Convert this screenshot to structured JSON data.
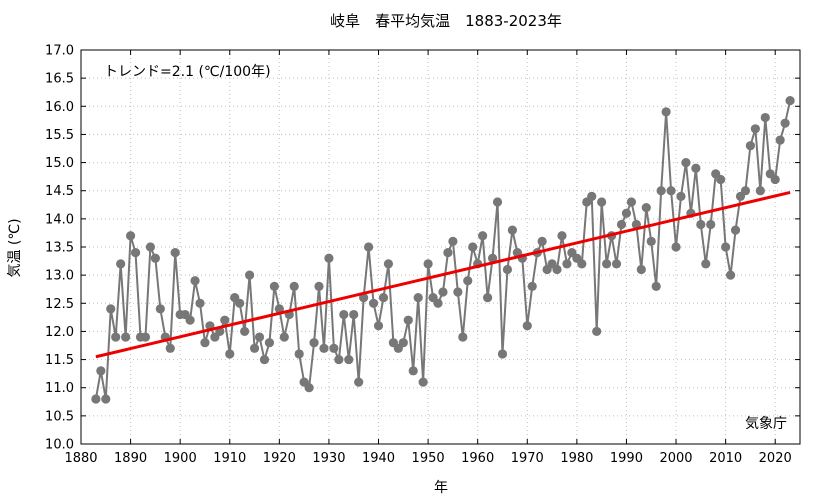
{
  "chart_data": {
    "type": "line",
    "title": "岐阜　春平均気温　1883-2023年",
    "xlabel": "年",
    "ylabel": "気温 (℃)",
    "xlim": [
      1880,
      2025
    ],
    "ylim": [
      10.0,
      17.0
    ],
    "x_ticks": [
      1880,
      1890,
      1900,
      1910,
      1920,
      1930,
      1940,
      1950,
      1960,
      1970,
      1980,
      1990,
      2000,
      2010,
      2020
    ],
    "y_ticks": [
      "10.0",
      "10.5",
      "11.0",
      "11.5",
      "12.0",
      "12.5",
      "13.0",
      "13.5",
      "14.0",
      "14.5",
      "15.0",
      "15.5",
      "16.0",
      "16.5",
      "17.0"
    ],
    "grid": true,
    "trend_label": "トレンド=2.1 (℃/100年)",
    "source": "気象庁",
    "colors": {
      "series": "#777777",
      "trend": "#ee0000"
    },
    "series": [
      {
        "x": [
          1883,
          1884,
          1885,
          1886,
          1887,
          1888,
          1889,
          1890,
          1891,
          1892,
          1893,
          1894,
          1895,
          1896,
          1897,
          1898,
          1899,
          1900,
          1901,
          1902,
          1903,
          1904,
          1905,
          1906,
          1907,
          1908,
          1909,
          1910,
          1911,
          1912,
          1913,
          1914,
          1915,
          1916,
          1917,
          1918,
          1919,
          1920,
          1921,
          1922,
          1923,
          1924,
          1925,
          1926,
          1927,
          1928,
          1929,
          1930,
          1931,
          1932,
          1933,
          1934,
          1935,
          1936,
          1937,
          1938,
          1939,
          1940,
          1941,
          1942,
          1943,
          1944,
          1945,
          1946,
          1947,
          1948,
          1949,
          1950,
          1951,
          1952,
          1953,
          1954,
          1955,
          1956,
          1957,
          1958,
          1959,
          1960,
          1961,
          1962,
          1963,
          1964,
          1965,
          1966,
          1967,
          1968,
          1969,
          1970,
          1971,
          1972,
          1973,
          1974,
          1975,
          1976,
          1977,
          1978,
          1979,
          1980,
          1981,
          1982,
          1983,
          1984,
          1985,
          1986,
          1987,
          1988,
          1989,
          1990,
          1991,
          1992,
          1993,
          1994,
          1995,
          1996,
          1997,
          1998,
          1999,
          2000,
          2001,
          2002,
          2003,
          2004,
          2005,
          2006,
          2007,
          2008,
          2009,
          2010,
          2011,
          2012,
          2013,
          2014,
          2015,
          2016,
          2017,
          2018,
          2019,
          2020,
          2021,
          2022,
          2023
        ],
        "values": [
          10.8,
          11.3,
          10.8,
          12.4,
          11.9,
          13.2,
          11.9,
          13.7,
          13.4,
          11.9,
          11.9,
          13.5,
          13.3,
          12.4,
          11.9,
          11.7,
          13.4,
          12.3,
          12.3,
          12.2,
          12.9,
          12.5,
          11.8,
          12.1,
          11.9,
          12.0,
          12.2,
          11.6,
          12.6,
          12.5,
          12.0,
          13.0,
          11.7,
          11.9,
          11.5,
          11.8,
          12.8,
          12.4,
          11.9,
          12.3,
          12.8,
          11.6,
          11.1,
          11.0,
          11.8,
          12.8,
          11.7,
          13.3,
          11.7,
          11.5,
          12.3,
          11.5,
          12.3,
          11.1,
          12.6,
          13.5,
          12.5,
          12.1,
          12.6,
          13.2,
          11.8,
          11.7,
          11.8,
          12.2,
          11.3,
          12.6,
          11.1,
          13.2,
          12.6,
          12.5,
          12.7,
          13.4,
          13.6,
          12.7,
          11.9,
          12.9,
          13.5,
          13.2,
          13.7,
          12.6,
          13.3,
          14.3,
          11.6,
          13.1,
          13.8,
          13.4,
          13.3,
          12.1,
          12.8,
          13.4,
          13.6,
          13.1,
          13.2,
          13.1,
          13.7,
          13.2,
          13.4,
          13.3,
          13.2,
          14.3,
          14.4,
          12.0,
          14.3,
          13.2,
          13.7,
          13.2,
          13.9,
          14.1,
          14.3,
          13.9,
          13.1,
          14.2,
          13.6,
          12.8,
          14.5,
          15.9,
          14.5,
          13.5,
          14.4,
          15.0,
          14.1,
          14.9,
          13.9,
          13.2,
          13.9,
          14.8,
          14.7,
          13.5,
          13.0,
          13.8,
          14.4,
          14.5,
          15.3,
          15.6,
          14.5,
          15.8,
          14.8,
          14.7,
          15.4,
          15.7,
          16.1
        ]
      }
    ],
    "trend": {
      "x": [
        1883,
        2023
      ],
      "y": [
        11.55,
        14.47
      ]
    }
  }
}
